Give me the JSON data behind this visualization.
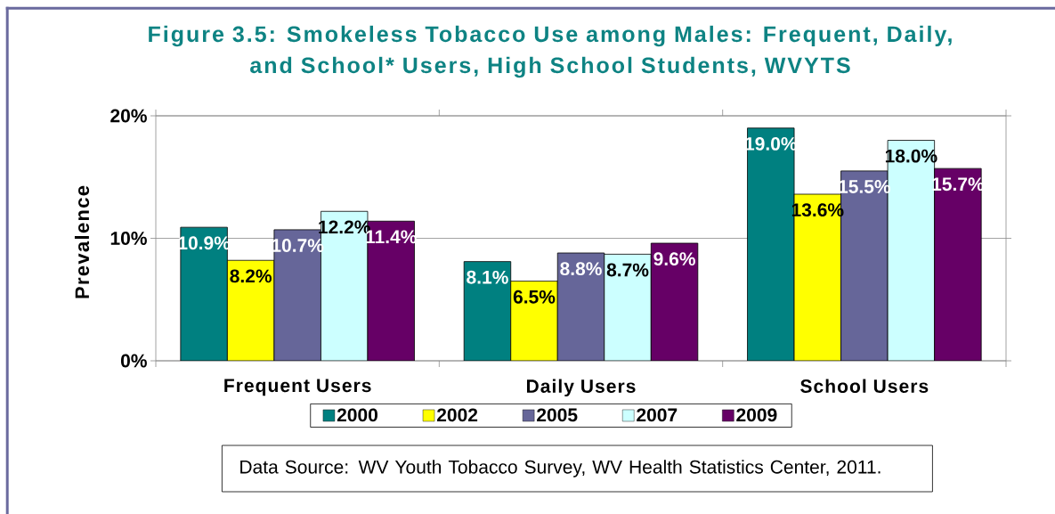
{
  "chart_data": {
    "type": "bar",
    "title": "Figure 3.5:  Smokeless Tobacco Use among Males: Frequent, Daily, and School* Users, High School Students, WVYTS",
    "ylabel": "Prevalence",
    "categories": [
      "Frequent Users",
      "Daily Users",
      "School Users"
    ],
    "series": [
      {
        "name": "2000",
        "color": "#008080",
        "values": [
          10.9,
          8.1,
          19.0
        ],
        "value_labels": [
          "10.9%",
          "8.1%",
          "19.0%"
        ]
      },
      {
        "name": "2002",
        "color": "#ffff00",
        "values": [
          8.2,
          6.5,
          13.6
        ],
        "value_labels": [
          "8.2%",
          "6.5%",
          "13.6%"
        ]
      },
      {
        "name": "2005",
        "color": "#666699",
        "values": [
          10.7,
          8.8,
          15.5
        ],
        "value_labels": [
          "10.7%",
          "8.8%",
          "15.5%"
        ]
      },
      {
        "name": "2007",
        "color": "#ccffff",
        "values": [
          12.2,
          8.7,
          18.0
        ],
        "value_labels": [
          "12.2%",
          "8.7%",
          "18.0%"
        ]
      },
      {
        "name": "2009",
        "color": "#660066",
        "values": [
          11.4,
          9.6,
          15.7
        ],
        "value_labels": [
          "11.4%",
          "9.6%",
          "15.7%"
        ]
      }
    ],
    "ylim": [
      0,
      20
    ],
    "yticks": [
      {
        "value": 0,
        "label": "0%"
      },
      {
        "value": 10,
        "label": "10%"
      },
      {
        "value": 20,
        "label": "20%"
      }
    ],
    "grid": "y",
    "legend": "bottom",
    "annotations": [
      "Data Source:  WV Youth Tobacco Survey, WV Health Statistics Center, 2011."
    ]
  }
}
